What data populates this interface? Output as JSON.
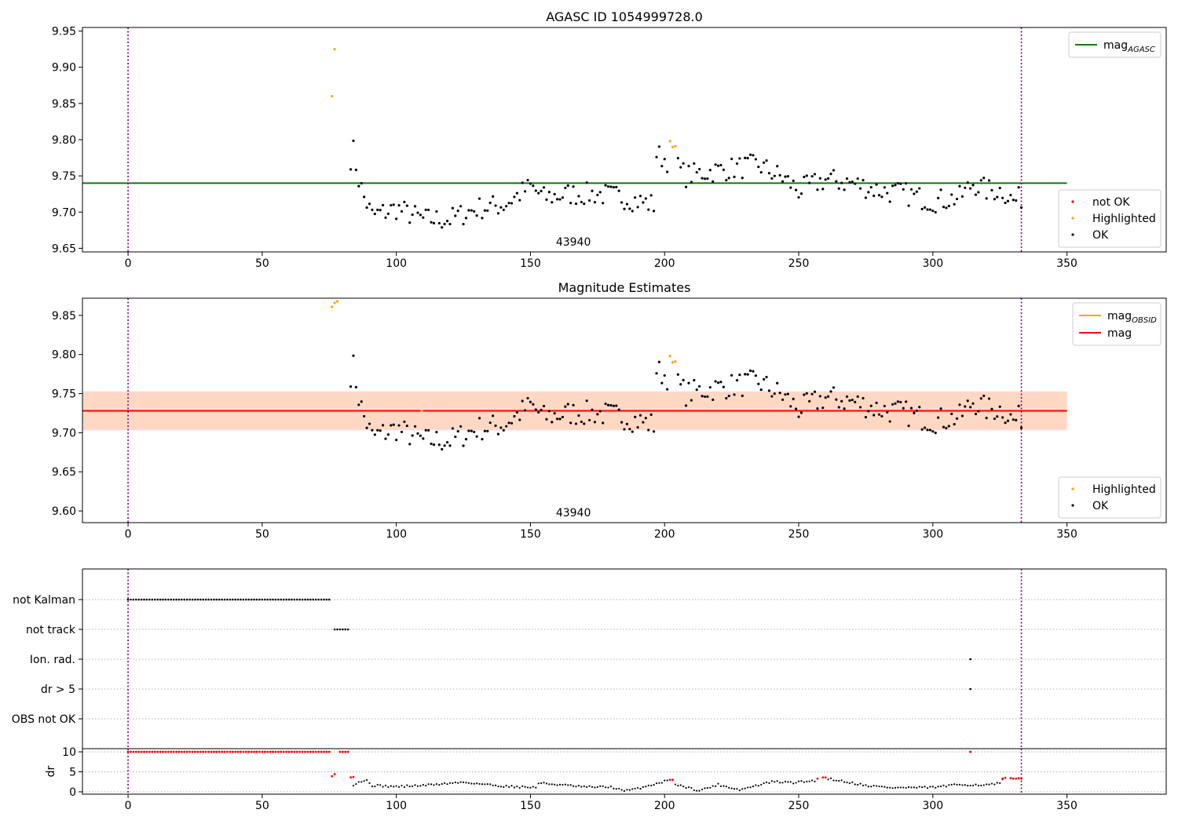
{
  "chart_data": [
    {
      "type": "scatter",
      "id": "top",
      "title": "AGASC ID 1054999728.0",
      "xlim": [
        -17,
        387
      ],
      "ylim": [
        9.645,
        9.955
      ],
      "xticks": [
        0,
        50,
        100,
        150,
        200,
        250,
        300,
        350
      ],
      "yticks": [
        9.65,
        9.7,
        9.75,
        9.8,
        9.85,
        9.9,
        9.95
      ],
      "ytick_labels": [
        "9.65",
        "9.70",
        "9.75",
        "9.80",
        "9.85",
        "9.90",
        "9.95"
      ],
      "obsid_label": "43940",
      "obsid_label_x": 166,
      "vlines": [
        0,
        333
      ],
      "hlines": [
        {
          "name": "mag",
          "name_sub": "AGASC",
          "y": 9.74,
          "x0": -17,
          "x1": 350,
          "color": "#008000"
        }
      ],
      "legend_lines": [
        {
          "name": "mag",
          "sub": "AGASC",
          "color": "#008000"
        }
      ],
      "legend_points": [
        {
          "name": "not OK",
          "color": "#ff0000"
        },
        {
          "name": "Highlighted",
          "color": "#ffa500"
        },
        {
          "name": "OK",
          "color": "#000000"
        }
      ],
      "highlighted": [
        [
          76,
          9.86
        ],
        [
          77,
          9.925
        ],
        [
          202,
          9.798
        ],
        [
          203,
          9.79
        ],
        [
          204,
          9.791
        ]
      ]
    },
    {
      "type": "scatter",
      "id": "mid",
      "title": "Magnitude Estimates",
      "xlim": [
        -17,
        387
      ],
      "ylim": [
        9.585,
        9.872
      ],
      "xticks": [
        0,
        50,
        100,
        150,
        200,
        250,
        300,
        350
      ],
      "yticks": [
        9.6,
        9.65,
        9.7,
        9.75,
        9.8,
        9.85
      ],
      "ytick_labels": [
        "9.60",
        "9.65",
        "9.70",
        "9.75",
        "9.80",
        "9.85"
      ],
      "obsid_label": "43940",
      "obsid_label_x": 166,
      "vlines": [
        0,
        333
      ],
      "band_outer": {
        "y0": 9.703,
        "y1": 9.753,
        "x0": -17,
        "x1": 350,
        "color": "#ffdde2"
      },
      "band_inner": {
        "y0": 9.704,
        "y1": 9.752,
        "x0": -17,
        "x1": 350,
        "color": "#ffd8c4"
      },
      "hlines": [
        {
          "name": "mag",
          "y": 9.728,
          "x0": -17,
          "x1": 350,
          "color": "#ff0000"
        },
        {
          "name": "mag OBSID",
          "y": 9.728,
          "x0": 109,
          "x1": 110,
          "color": "#ffa500"
        }
      ],
      "legend_lines": [
        {
          "name": "mag",
          "sub": "OBSID",
          "color": "#ffa500"
        },
        {
          "name": "mag",
          "sub": "",
          "color": "#ff0000"
        }
      ],
      "legend_points": [
        {
          "name": "Highlighted",
          "color": "#ffa500"
        },
        {
          "name": "OK",
          "color": "#000000"
        }
      ],
      "highlighted": [
        [
          76,
          9.861
        ],
        [
          77,
          9.866
        ],
        [
          78,
          9.868
        ],
        [
          202,
          9.798
        ],
        [
          203,
          9.79
        ],
        [
          204,
          9.791
        ]
      ]
    },
    {
      "type": "scatter",
      "id": "flags",
      "xlim": [
        -17,
        387
      ],
      "categories": [
        "not Kalman",
        "not track",
        "Ion. rad.",
        "dr > 5",
        "OBS not OK"
      ],
      "vlines": [
        0,
        333
      ],
      "flag_ranges": [
        {
          "category": "not Kalman",
          "from": 0,
          "to": 75
        },
        {
          "category": "not track",
          "from": 77,
          "to": 82
        },
        {
          "category": "Ion. rad.",
          "from": 314,
          "to": 314
        },
        {
          "category": "dr > 5",
          "from": 314,
          "to": 314
        }
      ]
    },
    {
      "type": "scatter",
      "id": "dr",
      "ylabel": "dr",
      "xlim": [
        -17,
        387
      ],
      "ylim": [
        -0.6,
        10.8
      ],
      "xticks": [
        0,
        50,
        100,
        150,
        200,
        250,
        300,
        350
      ],
      "yticks": [
        0,
        5,
        10
      ],
      "ytick_labels": [
        "0",
        "5",
        "10"
      ],
      "vlines": [
        0,
        333
      ],
      "capped_red": {
        "from": 0,
        "to": 75,
        "y": 10
      },
      "capped_red_extra": [
        [
          79,
          10
        ],
        [
          80,
          10
        ],
        [
          81,
          10
        ],
        [
          82,
          10
        ],
        [
          314,
          10
        ]
      ],
      "red_points": [
        [
          76,
          3.9
        ],
        [
          77,
          4.4
        ],
        [
          83,
          3.6
        ],
        [
          84,
          3.7
        ],
        [
          202,
          3.0
        ],
        [
          203,
          3.0
        ],
        [
          257,
          3.3
        ],
        [
          259,
          3.6
        ],
        [
          260,
          3.6
        ],
        [
          326,
          3.3
        ],
        [
          327,
          3.5
        ],
        [
          329,
          3.4
        ],
        [
          330,
          3.3
        ],
        [
          331,
          3.3
        ],
        [
          332,
          3.4
        ],
        [
          333,
          3.3
        ]
      ],
      "dr_knots": [
        [
          84,
          1.8
        ],
        [
          86,
          2.5
        ],
        [
          89,
          2.8
        ],
        [
          91,
          1.6
        ],
        [
          100,
          1.3
        ],
        [
          110,
          1.6
        ],
        [
          125,
          2.4
        ],
        [
          140,
          1.4
        ],
        [
          152,
          1.1
        ],
        [
          153,
          2.2
        ],
        [
          162,
          1.7
        ],
        [
          170,
          1.2
        ],
        [
          180,
          1.2
        ],
        [
          185,
          0.2
        ],
        [
          190,
          0.8
        ],
        [
          201,
          2.8
        ],
        [
          206,
          1.5
        ],
        [
          213,
          0.3
        ],
        [
          220,
          1.8
        ],
        [
          228,
          0.5
        ],
        [
          240,
          2.5
        ],
        [
          248,
          2.3
        ],
        [
          256,
          2.8
        ],
        [
          262,
          3.2
        ],
        [
          275,
          1.6
        ],
        [
          285,
          1.0
        ],
        [
          300,
          1.1
        ],
        [
          310,
          1.8
        ],
        [
          320,
          1.7
        ],
        [
          325,
          2.1
        ],
        [
          326,
          3.0
        ]
      ]
    }
  ]
}
